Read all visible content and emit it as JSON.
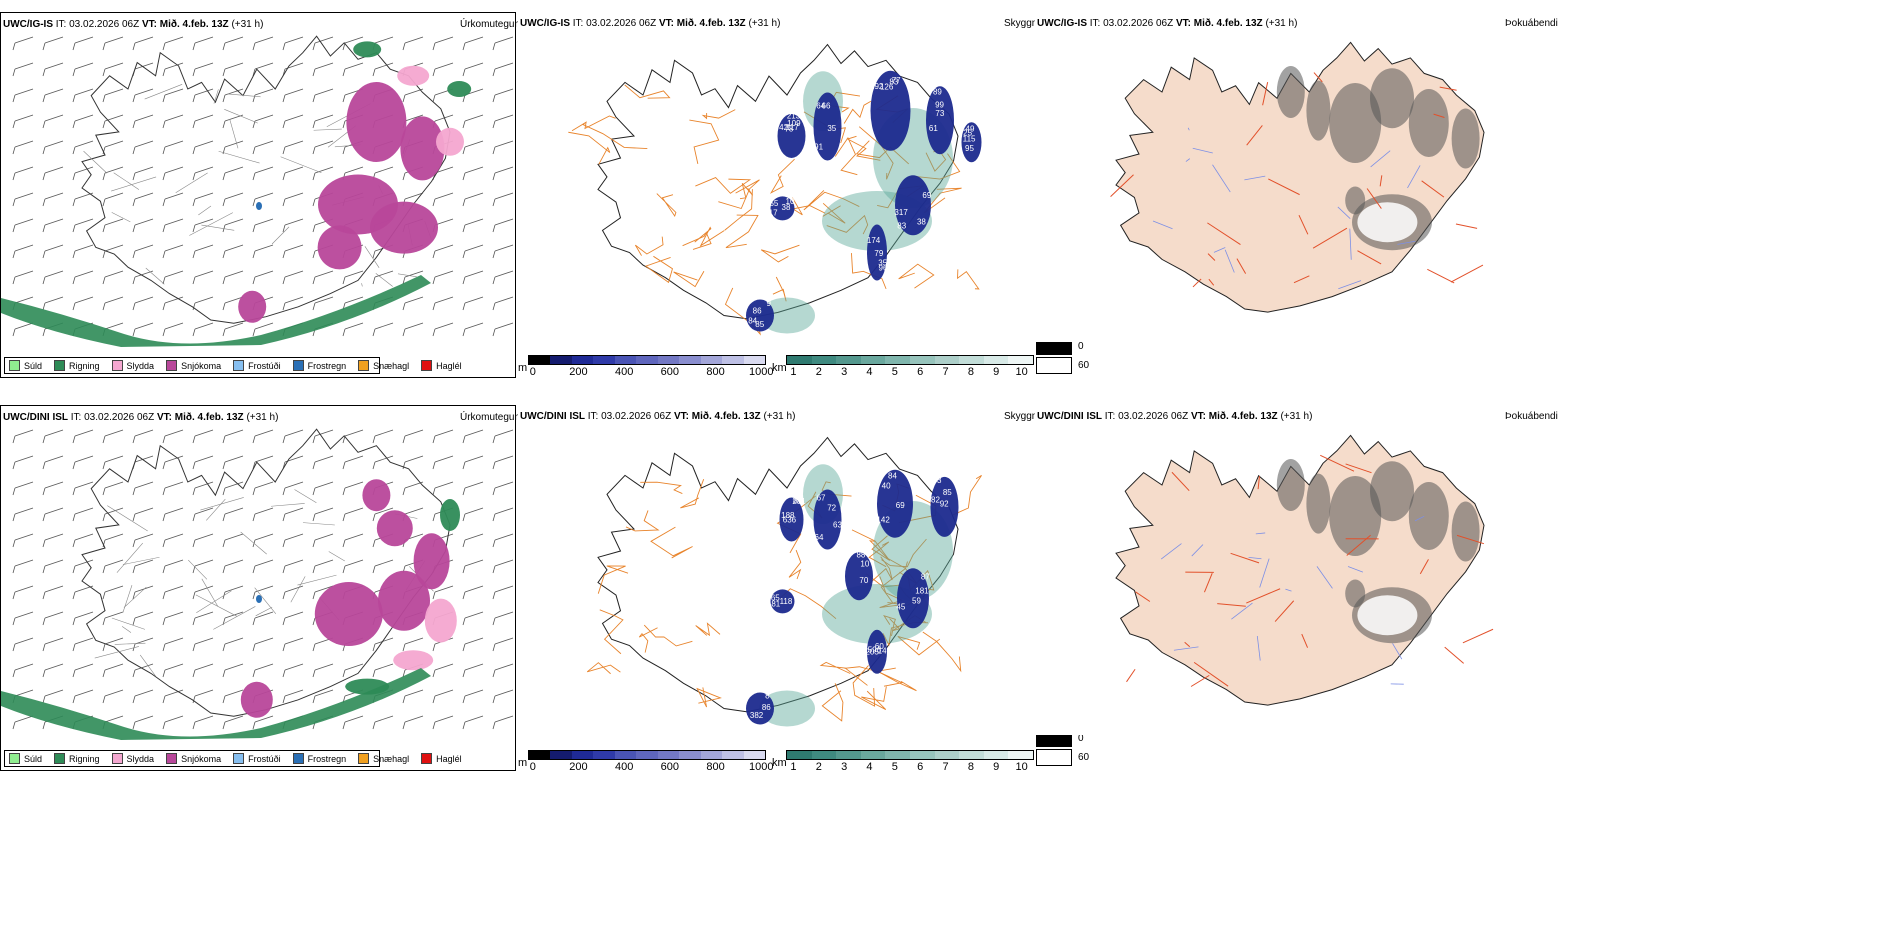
{
  "panels": [
    {
      "id": "r1c1",
      "model": "UWC/IG-IS",
      "it_label": "IT:",
      "it": "03.02.2026 06Z",
      "vt_label": "VT:",
      "vt": "Mið. 4.feb. 13Z",
      "lead": "(+31 h)",
      "right": "Úrkomutegund"
    },
    {
      "id": "r1c2",
      "model": "UWC/IG-IS",
      "it_label": "IT:",
      "it": "03.02.2026 06Z",
      "vt_label": "VT:",
      "vt": "Mið. 4.feb. 13Z",
      "lead": "(+31 h)",
      "right": "Skyggni"
    },
    {
      "id": "r1c3",
      "model": "UWC/IG-IS",
      "it_label": "IT:",
      "it": "03.02.2026 06Z",
      "vt_label": "VT:",
      "vt": "Mið. 4.feb. 13Z",
      "lead": "(+31 h)",
      "right": "Þokuábendi"
    },
    {
      "id": "r2c1",
      "model": "UWC/DINI ISL",
      "it_label": "IT:",
      "it": "03.02.2026 06Z",
      "vt_label": "VT:",
      "vt": "Mið. 4.feb. 13Z",
      "lead": "(+31 h)",
      "right": "Úrkomutegund"
    },
    {
      "id": "r2c2",
      "model": "UWC/DINI ISL",
      "it_label": "IT:",
      "it": "03.02.2026 06Z",
      "vt_label": "VT:",
      "vt": "Mið. 4.feb. 13Z",
      "lead": "(+31 h)",
      "right": "Skyggni"
    },
    {
      "id": "r2c3",
      "model": "UWC/DINI ISL",
      "it_label": "IT:",
      "it": "03.02.2026 06Z",
      "vt_label": "VT:",
      "vt": "Mið. 4.feb. 13Z",
      "lead": "(+31 h)",
      "right": "Þokuábendi"
    }
  ],
  "precip_legend": [
    {
      "label": "Súld",
      "color": "#90ee90"
    },
    {
      "label": "Rigning",
      "color": "#2e8b57"
    },
    {
      "label": "Slydda",
      "color": "#f4a7d0"
    },
    {
      "label": "Snjókoma",
      "color": "#b8479a"
    },
    {
      "label": "Frostúði",
      "color": "#87bff0"
    },
    {
      "label": "Frostregn",
      "color": "#2a6fb5"
    },
    {
      "label": "Snæhagl",
      "color": "#f0a020"
    },
    {
      "label": "Haglél",
      "color": "#e01010"
    }
  ],
  "vis_scale_m": {
    "unit": "m",
    "ticks": [
      "0",
      "200",
      "400",
      "600",
      "800",
      "1000"
    ]
  },
  "vis_scale_km": {
    "unit": "km",
    "ticks": [
      "1",
      "2",
      "3",
      "4",
      "5",
      "6",
      "7",
      "8",
      "9",
      "10"
    ]
  },
  "fog_legend": {
    "black": "0",
    "white": "60"
  },
  "vis_labels_row1": [
    "213",
    "66",
    "83",
    "73",
    "83",
    "96",
    "55",
    "9",
    "115",
    "109",
    "91",
    "126",
    "99",
    "317",
    "174",
    "17",
    "84",
    "49",
    "117",
    "35",
    "192",
    "89",
    "69",
    "79",
    "10",
    "86",
    "95",
    "78",
    "64",
    "77",
    "61",
    "38",
    "35",
    "38",
    "85",
    "25",
    "42"
  ],
  "vis_labels_row2": [
    "188",
    "67",
    "84",
    "103",
    "59",
    "60",
    "81",
    "8",
    "10",
    "281",
    "64",
    "142",
    "85",
    "181",
    "141",
    "118",
    "382",
    "70",
    "636",
    "63",
    "69",
    "82",
    "87",
    "205",
    "65",
    "86",
    "88",
    "87",
    "72",
    "40",
    "92",
    "45",
    "596"
  ],
  "colors": {
    "rain": "#2e8b57",
    "snow": "#b8479a",
    "sleet": "#f4a7d0",
    "frz": "#2a6fb5",
    "visdark": "#1c2a8e",
    "visteal": "#5aa89a",
    "road": "#e8842c",
    "land": "#f5dccb",
    "redroad": "#e2502a",
    "river": "#7c8fe6"
  }
}
